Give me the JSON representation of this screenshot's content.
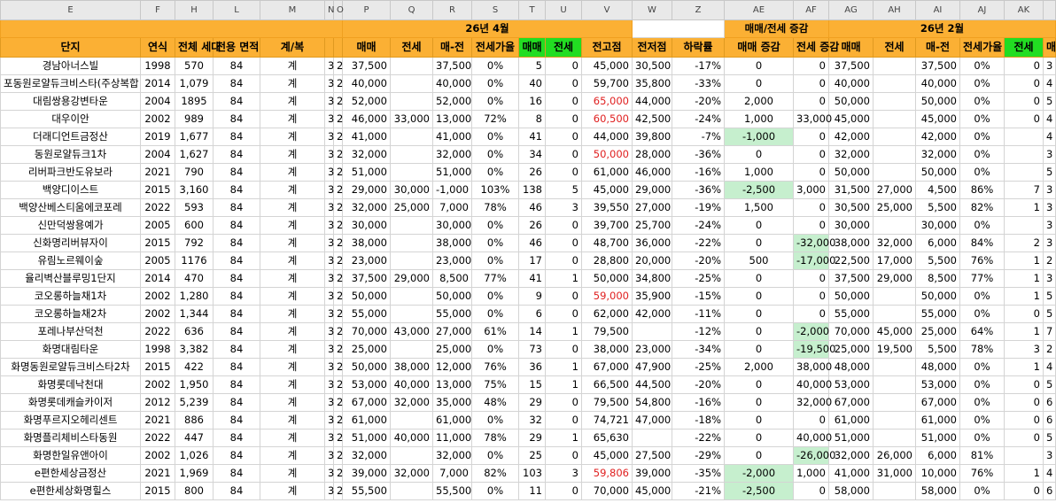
{
  "column_letters": [
    "E",
    "F",
    "H",
    "L",
    "M",
    "N",
    "O",
    "P",
    "Q",
    "R",
    "S",
    "T",
    "U",
    "V",
    "W",
    "Z",
    "AE",
    "AF",
    "AG",
    "AH",
    "AI",
    "AJ",
    "AK",
    null
  ],
  "group_headers": [
    "26년 4월",
    "매매/전세 증감",
    "26년 2월"
  ],
  "headers": [
    "단지",
    "연식",
    "전체 세대",
    "전용 면적",
    "계/복",
    null,
    null,
    "매매",
    "전세",
    "매-전",
    "전세가율",
    "매매",
    "전세",
    "전고점",
    "전저점",
    "하락률",
    "매매 증감",
    "전세 증감",
    "매매",
    "전세",
    "매-전",
    "전세가율",
    "전세",
    "매"
  ],
  "rows": [
    [
      "경남아너스빌",
      "1998",
      "570",
      "84",
      "계",
      "3",
      "2",
      "37,500",
      null,
      "37,500",
      "0%",
      "5",
      "0",
      "45,000",
      "30,500",
      "-17%",
      "0",
      "0",
      "37,500",
      null,
      "37,500",
      "0%",
      "0",
      "3"
    ],
    [
      "포동원로얄듀크비스타(주상복합",
      "2014",
      "1,079",
      "84",
      "계",
      "3",
      "2",
      "40,000",
      null,
      "40,000",
      "0%",
      "40",
      "0",
      "59,700",
      "35,800",
      "-33%",
      "0",
      "0",
      "40,000",
      null,
      "40,000",
      "0%",
      "0",
      "4"
    ],
    [
      "대림쌍용강변타운",
      "2004",
      "1895",
      "84",
      "계",
      "3",
      "2",
      "52,000",
      null,
      "52,000",
      "0%",
      "16",
      "0",
      "65,000",
      "44,000",
      "-20%",
      "2,000",
      "0",
      "50,000",
      null,
      "50,000",
      "0%",
      "0",
      "5"
    ],
    [
      "대우이안",
      "2002",
      "989",
      "84",
      "계",
      "3",
      "2",
      "46,000",
      "33,000",
      "13,000",
      "72%",
      "8",
      "0",
      "60,500",
      "42,500",
      "-24%",
      "1,000",
      "33,000",
      "45,000",
      null,
      "45,000",
      "0%",
      "0",
      "4"
    ],
    [
      "더래디언트금정산",
      "2019",
      "1,677",
      "84",
      "계",
      "3",
      "2",
      "41,000",
      null,
      "41,000",
      "0%",
      "41",
      "0",
      "44,000",
      "39,800",
      "-7%",
      "-1,000",
      "0",
      "42,000",
      null,
      "42,000",
      "0%",
      null,
      "4"
    ],
    [
      "동원로얄듀크1차",
      "2004",
      "1,627",
      "84",
      "계",
      "3",
      "2",
      "32,000",
      null,
      "32,000",
      "0%",
      "34",
      "0",
      "50,000",
      "28,000",
      "-36%",
      "0",
      "0",
      "32,000",
      null,
      "32,000",
      "0%",
      null,
      "3"
    ],
    [
      "리버파크반도유보라",
      "2021",
      "790",
      "84",
      "계",
      "3",
      "2",
      "51,000",
      null,
      "51,000",
      "0%",
      "26",
      "0",
      "61,000",
      "46,000",
      "-16%",
      "1,000",
      "0",
      "50,000",
      null,
      "50,000",
      "0%",
      null,
      "5"
    ],
    [
      "백양디이스트",
      "2015",
      "3,160",
      "84",
      "계",
      "3",
      "2",
      "29,000",
      "30,000",
      "-1,000",
      "103%",
      "138",
      "5",
      "45,000",
      "29,000",
      "-36%",
      "-2,500",
      "3,000",
      "31,500",
      "27,000",
      "4,500",
      "86%",
      "7",
      "3"
    ],
    [
      "백양산베스티움에코포레",
      "2022",
      "593",
      "84",
      "계",
      "3",
      "2",
      "32,000",
      "25,000",
      "7,000",
      "78%",
      "46",
      "3",
      "39,550",
      "27,000",
      "-19%",
      "1,500",
      "0",
      "30,500",
      "25,000",
      "5,500",
      "82%",
      "1",
      "3"
    ],
    [
      "신만덕쌍용예가",
      "2005",
      "600",
      "84",
      "계",
      "3",
      "2",
      "30,000",
      null,
      "30,000",
      "0%",
      "26",
      "0",
      "39,700",
      "25,700",
      "-24%",
      "0",
      "0",
      "30,000",
      null,
      "30,000",
      "0%",
      null,
      "3"
    ],
    [
      "신화명리버뷰자이",
      "2015",
      "792",
      "84",
      "계",
      "3",
      "2",
      "38,000",
      null,
      "38,000",
      "0%",
      "46",
      "0",
      "48,700",
      "36,000",
      "-22%",
      "0",
      "-32,000",
      "38,000",
      "32,000",
      "6,000",
      "84%",
      "2",
      "3"
    ],
    [
      "유림노르웨이숲",
      "2005",
      "1176",
      "84",
      "계",
      "3",
      "2",
      "23,000",
      null,
      "23,000",
      "0%",
      "17",
      "0",
      "28,800",
      "20,000",
      "-20%",
      "500",
      "-17,000",
      "22,500",
      "17,000",
      "5,500",
      "76%",
      "1",
      "2"
    ],
    [
      "율리벽산블루밍1단지",
      "2014",
      "470",
      "84",
      "계",
      "3",
      "2",
      "37,500",
      "29,000",
      "8,500",
      "77%",
      "41",
      "1",
      "50,000",
      "34,800",
      "-25%",
      "0",
      "0",
      "37,500",
      "29,000",
      "8,500",
      "77%",
      "1",
      "3"
    ],
    [
      "코오롱하늘채1차",
      "2002",
      "1,280",
      "84",
      "계",
      "3",
      "2",
      "50,000",
      null,
      "50,000",
      "0%",
      "9",
      "0",
      "59,000",
      "35,900",
      "-15%",
      "0",
      "0",
      "50,000",
      null,
      "50,000",
      "0%",
      "1",
      "5"
    ],
    [
      "코오롱하늘채2차",
      "2002",
      "1,344",
      "84",
      "계",
      "3",
      "2",
      "55,000",
      null,
      "55,000",
      "0%",
      "6",
      "0",
      "62,000",
      "42,000",
      "-11%",
      "0",
      "0",
      "55,000",
      null,
      "55,000",
      "0%",
      "0",
      "5"
    ],
    [
      "포레나부산덕천",
      "2022",
      "636",
      "84",
      "계",
      "3",
      "2",
      "70,000",
      "43,000",
      "27,000",
      "61%",
      "14",
      "1",
      "79,500",
      null,
      "-12%",
      "0",
      "-2,000",
      "70,000",
      "45,000",
      "25,000",
      "64%",
      "1",
      "7"
    ],
    [
      "화명대림타운",
      "1998",
      "3,382",
      "84",
      "계",
      "3",
      "2",
      "25,000",
      null,
      "25,000",
      "0%",
      "73",
      "0",
      "38,000",
      "23,000",
      "-34%",
      "0",
      "-19,500",
      "25,000",
      "19,500",
      "5,500",
      "78%",
      "3",
      "2"
    ],
    [
      "화명동원로얄듀크비스타2차",
      "2015",
      "422",
      "84",
      "계",
      "3",
      "2",
      "50,000",
      "38,000",
      "12,000",
      "76%",
      "36",
      "1",
      "67,000",
      "47,900",
      "-25%",
      "2,000",
      "38,000",
      "48,000",
      null,
      "48,000",
      "0%",
      "1",
      "4"
    ],
    [
      "화명롯데낙천대",
      "2002",
      "1,950",
      "84",
      "계",
      "3",
      "2",
      "53,000",
      "40,000",
      "13,000",
      "75%",
      "15",
      "1",
      "66,500",
      "44,500",
      "-20%",
      "0",
      "40,000",
      "53,000",
      null,
      "53,000",
      "0%",
      "0",
      "5"
    ],
    [
      "화명롯데캐슬카이저",
      "2012",
      "5,239",
      "84",
      "계",
      "3",
      "2",
      "67,000",
      "32,000",
      "35,000",
      "48%",
      "29",
      "0",
      "79,500",
      "54,800",
      "-16%",
      "0",
      "32,000",
      "67,000",
      null,
      "67,000",
      "0%",
      "0",
      "6"
    ],
    [
      "화명푸르지오헤리센트",
      "2021",
      "886",
      "84",
      "계",
      "3",
      "2",
      "61,000",
      null,
      "61,000",
      "0%",
      "32",
      "0",
      "74,721",
      "47,000",
      "-18%",
      "0",
      "0",
      "61,000",
      null,
      "61,000",
      "0%",
      "0",
      "6"
    ],
    [
      "화명플리체비스타동원",
      "2022",
      "447",
      "84",
      "계",
      "3",
      "2",
      "51,000",
      "40,000",
      "11,000",
      "78%",
      "29",
      "1",
      "65,630",
      null,
      "-22%",
      "0",
      "40,000",
      "51,000",
      null,
      "51,000",
      "0%",
      "0",
      "5"
    ],
    [
      "화명한일유앤아이",
      "2002",
      "1,026",
      "84",
      "계",
      "3",
      "2",
      "32,000",
      null,
      "32,000",
      "0%",
      "25",
      "0",
      "45,000",
      "27,500",
      "-29%",
      "0",
      "-26,000",
      "32,000",
      "26,000",
      "6,000",
      "81%",
      null,
      "3"
    ],
    [
      "e편한세상금정산",
      "2021",
      "1,969",
      "84",
      "계",
      "3",
      "2",
      "39,000",
      "32,000",
      "7,000",
      "82%",
      "103",
      "3",
      "59,806",
      "39,000",
      "-35%",
      "-2,000",
      "1,000",
      "41,000",
      "31,000",
      "10,000",
      "76%",
      "1",
      "4"
    ],
    [
      "e편한세상화명힐스",
      "2015",
      "800",
      "84",
      "계",
      "3",
      "2",
      "55,500",
      null,
      "55,500",
      "0%",
      "11",
      "0",
      "70,000",
      "45,000",
      "-21%",
      "-2,500",
      "0",
      "58,000",
      null,
      "58,000",
      "0%",
      "0",
      "6"
    ]
  ]
}
